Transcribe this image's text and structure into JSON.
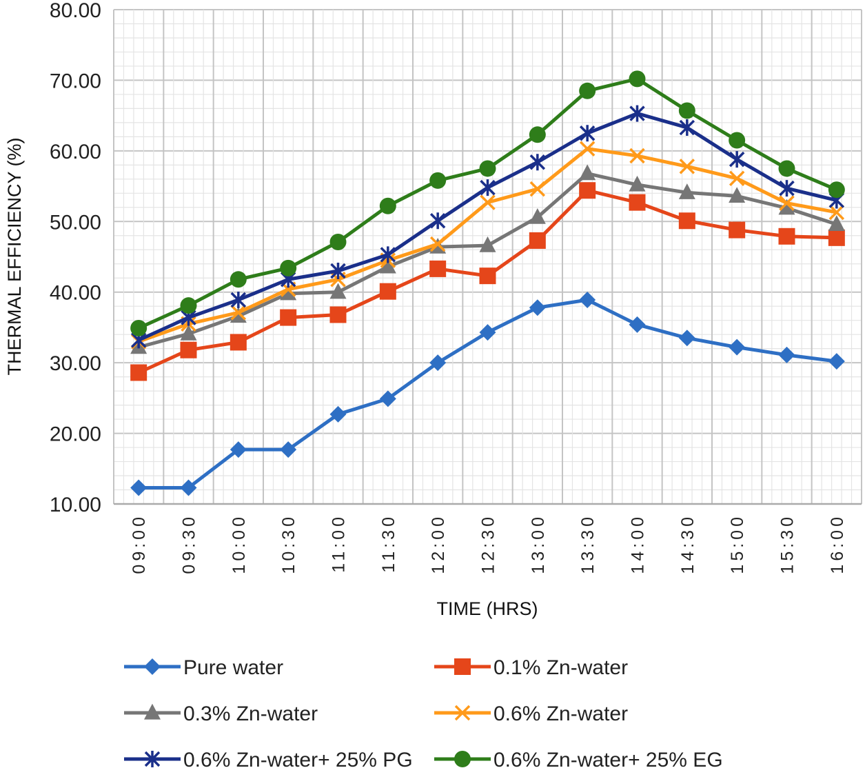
{
  "chart_data": {
    "type": "line",
    "title": "",
    "xlabel": "TIME (HRS)",
    "ylabel": "THERMAL EFFICIENCY (%)",
    "ylim": [
      10,
      80
    ],
    "yticks": [
      "10.00",
      "20.00",
      "30.00",
      "40.00",
      "50.00",
      "60.00",
      "70.00",
      "80.00"
    ],
    "categories": [
      "09:00",
      "09:30",
      "10:00",
      "10:30",
      "11:00",
      "11:30",
      "12:00",
      "12:30",
      "13:00",
      "13:30",
      "14:00",
      "14:30",
      "15:00",
      "15:30",
      "16:00"
    ],
    "grid": true,
    "legend_position": "bottom",
    "series": [
      {
        "name": "Pure water",
        "color": "#2e6fc4",
        "marker": "diamond",
        "values": [
          12.3,
          12.3,
          17.7,
          17.7,
          22.7,
          24.9,
          30.0,
          34.3,
          37.8,
          38.9,
          35.4,
          33.5,
          32.2,
          31.1,
          30.2
        ]
      },
      {
        "name": "0.1% Zn-water",
        "color": "#e5461a",
        "marker": "square",
        "values": [
          28.6,
          31.8,
          32.9,
          36.4,
          36.8,
          40.1,
          43.3,
          42.3,
          47.3,
          54.4,
          52.7,
          50.1,
          48.8,
          47.9,
          47.7
        ]
      },
      {
        "name": "0.3% Zn-water",
        "color": "#767676",
        "marker": "triangle",
        "values": [
          32.2,
          34.1,
          36.6,
          39.8,
          40.0,
          43.6,
          46.4,
          46.6,
          50.6,
          56.8,
          55.2,
          54.1,
          53.6,
          51.9,
          49.6
        ]
      },
      {
        "name": "0.6% Zn-water",
        "color": "#ff9a1a",
        "marker": "x",
        "values": [
          33.0,
          35.5,
          37.1,
          40.4,
          41.8,
          44.5,
          46.8,
          52.7,
          54.6,
          60.3,
          59.3,
          57.8,
          56.1,
          52.6,
          51.3
        ]
      },
      {
        "name": "0.6% Zn-water+  25% PG",
        "color": "#1a2f8a",
        "marker": "star",
        "values": [
          33.2,
          36.4,
          38.9,
          41.8,
          43.0,
          45.3,
          50.1,
          54.8,
          58.4,
          62.5,
          65.3,
          63.3,
          58.8,
          54.7,
          53.0
        ]
      },
      {
        "name": "0.6% Zn-water+ 25% EG",
        "color": "#2e7d1a",
        "marker": "circle",
        "values": [
          34.9,
          38.1,
          41.8,
          43.4,
          47.1,
          52.2,
          55.8,
          57.5,
          62.3,
          68.5,
          70.2,
          65.7,
          61.5,
          57.5,
          54.5
        ]
      }
    ]
  }
}
